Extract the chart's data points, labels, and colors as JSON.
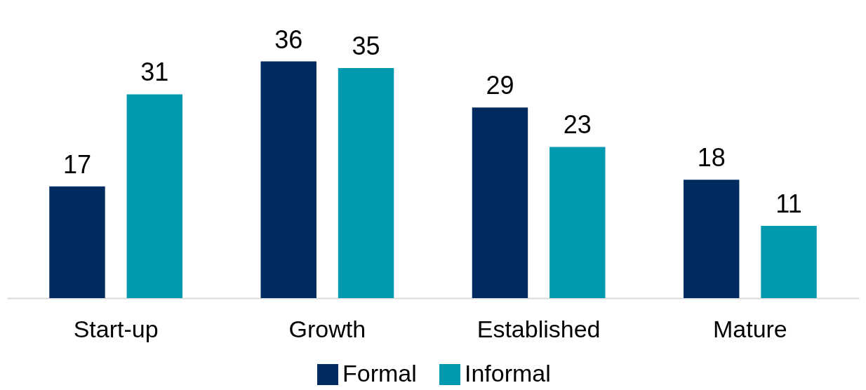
{
  "chart_data": {
    "type": "bar",
    "categories": [
      "Start-up",
      "Growth",
      "Established",
      "Mature"
    ],
    "series": [
      {
        "name": "Formal",
        "color": "#002b60",
        "values": [
          17,
          36,
          29,
          18
        ]
      },
      {
        "name": "Informal",
        "color": "#0099b0",
        "values": [
          31,
          35,
          23,
          11
        ]
      }
    ],
    "data_labels": true,
    "legend": "bottom"
  }
}
